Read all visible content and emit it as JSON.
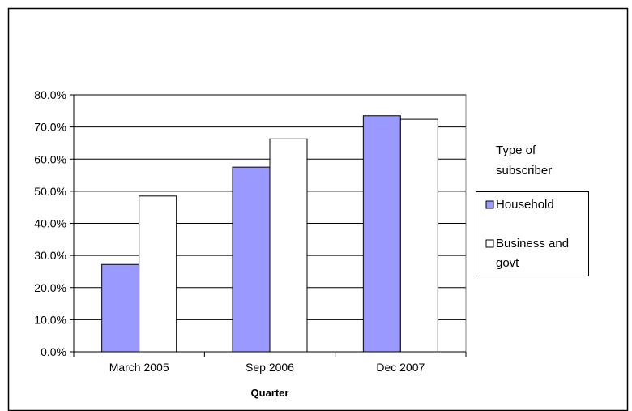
{
  "chart_data": {
    "type": "bar",
    "categories": [
      "March 2005",
      "Sep 2006",
      "Dec 2007"
    ],
    "series": [
      {
        "name": "Household",
        "values": [
          27.2,
          57.5,
          73.5
        ],
        "color": "#9999ff"
      },
      {
        "name": "Business and govt",
        "values": [
          48.5,
          66.3,
          72.4
        ],
        "color": "#ffffff"
      }
    ],
    "title": "",
    "xlabel": "Quarter",
    "ylabel": "",
    "ylim": [
      0,
      80
    ],
    "yticks": [
      "0.0%",
      "10.0%",
      "20.0%",
      "30.0%",
      "40.0%",
      "50.0%",
      "60.0%",
      "70.0%",
      "80.0%"
    ],
    "grid": true,
    "legend": {
      "placement": "right",
      "title_lines": [
        "Type of",
        "subscriber"
      ],
      "entries": [
        {
          "lines": [
            "Household"
          ]
        },
        {
          "lines": [
            "Business and",
            "govt"
          ]
        }
      ]
    }
  }
}
